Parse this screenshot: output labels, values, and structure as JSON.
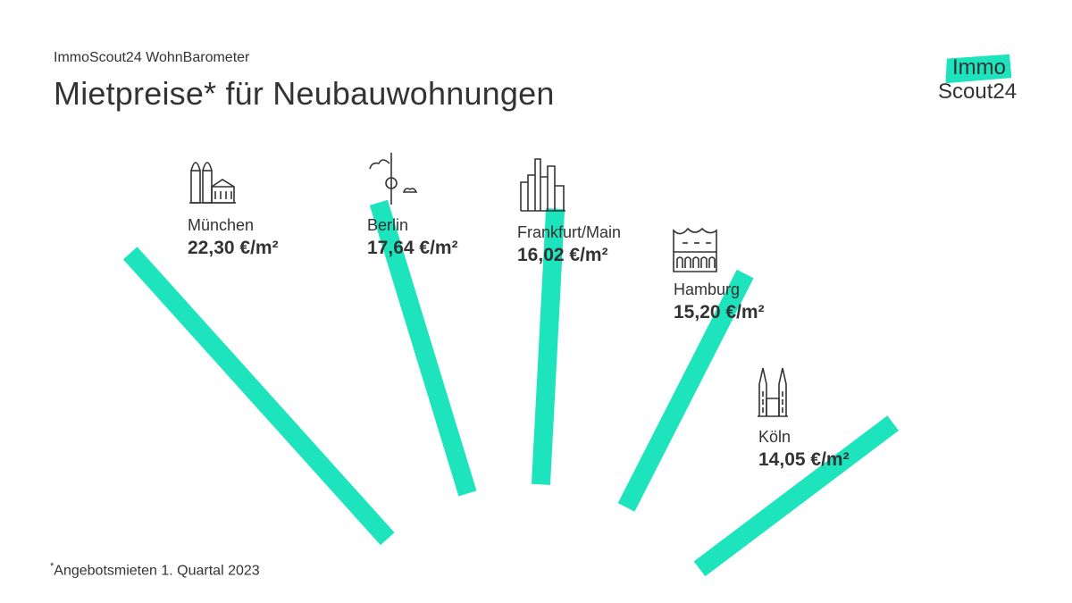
{
  "header": {
    "subtitle": "ImmoScout24 WohnBarometer",
    "title": "Mietpreise* für Neubauwohnungen"
  },
  "logo": {
    "line1": "Immo",
    "line2": "Scout24",
    "accent": "#1DE4BD"
  },
  "colors": {
    "bar": "#1DE4BD",
    "text": "#333333"
  },
  "chart_data": {
    "type": "bar",
    "layout": "radial-fan",
    "unit": "€/m²",
    "series": [
      {
        "name": "Angebotsmieten 1. Quartal 2023",
        "values": [
          22.3,
          17.64,
          16.02,
          15.2,
          14.05
        ]
      }
    ],
    "categories": [
      "München",
      "Berlin",
      "Frankfurt/Main",
      "Hamburg",
      "Köln"
    ],
    "value_labels": [
      "22,30 €/m²",
      "17,64 €/m²",
      "16,02 €/m²",
      "15,20 €/m²",
      "14,05 €/m²"
    ],
    "icons": [
      "frauenkirche-icon",
      "tv-tower-icon",
      "skyline-icon",
      "elbphilharmonie-icon",
      "cathedral-icon"
    ]
  },
  "footnote": {
    "marker": "*",
    "text": "Angebotsmieten 1. Quartal 2023"
  }
}
